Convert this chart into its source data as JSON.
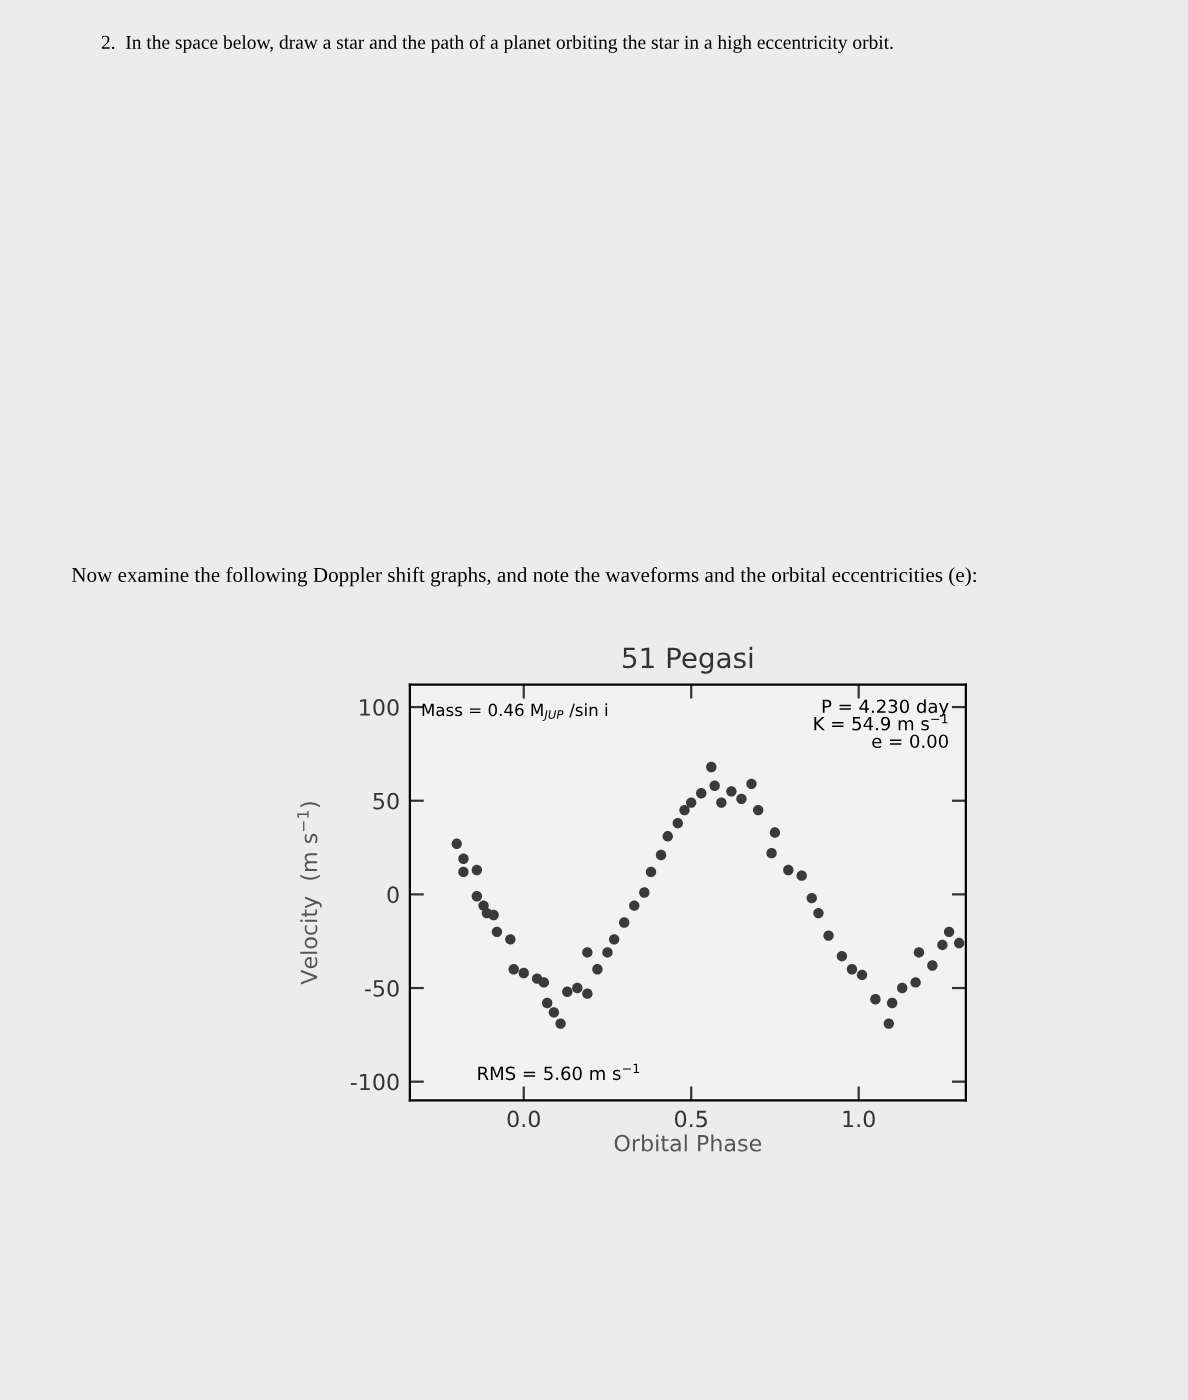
{
  "chart_data": {
    "type": "scatter",
    "title": "51 Pegasi",
    "xlabel": "Orbital Phase",
    "ylabel": "Velocity  (m s$^{−1}$)",
    "annotations": [
      "2.  In the space below, draw a star and the path of a planet orbiting the star in a high eccentricity orbit.",
      "Now examine the following Doppler shift graphs, and note the waveforms and the orbital eccentricities (e):",
      "Mass = 0.46 M$_{JUP}$ /sin i",
      "P = 4.230 day\nK = 54.9 m s$^{−1}$\ne = 0.00",
      "RMS = 5.60 m s$^{−1}$"
    ],
    "xlim": [
      -0.34,
      1.32
    ],
    "xticks": [
      {
        "value": 0,
        "label": "0.0"
      },
      0.5,
      {
        "value": 1,
        "label": "1.0"
      }
    ],
    "ylim": [
      -110,
      112
    ],
    "yticks": [
      -100,
      -50,
      0,
      50,
      100
    ],
    "grid": false,
    "marker": "circle",
    "series": [
      {
        "color": "#3a3a3a",
        "x": [
          -0.2,
          -0.18,
          -0.18,
          -0.14,
          -0.14,
          -0.12,
          -0.11,
          -0.09,
          -0.08,
          -0.04,
          -0.03,
          0.0,
          0.04,
          0.06,
          0.07,
          0.09,
          0.11,
          0.13,
          0.16,
          0.19,
          0.19,
          0.22,
          0.25,
          0.27,
          0.3,
          0.33,
          0.36,
          0.38,
          0.41,
          0.43,
          0.46,
          0.48,
          0.5,
          0.53,
          0.56,
          0.57,
          0.59,
          0.62,
          0.65,
          0.68,
          0.7,
          0.74,
          0.75,
          0.79,
          0.83,
          0.86,
          0.88,
          0.91,
          0.95,
          0.98,
          1.01,
          1.05,
          1.09,
          1.1,
          1.13,
          1.17,
          1.18,
          1.22,
          1.25,
          1.27,
          1.3
        ],
        "values": [
          27,
          19,
          12,
          13,
          -1,
          -6,
          -10,
          -11,
          -20,
          -24,
          -40,
          -42,
          -45,
          -47,
          -58,
          -63,
          -69,
          -52,
          -50,
          -53,
          -31,
          -40,
          -31,
          -24,
          -15,
          -6,
          1,
          12,
          21,
          31,
          38,
          45,
          49,
          54,
          68,
          58,
          49,
          55,
          51,
          59,
          45,
          22,
          33,
          13,
          10,
          -2,
          -10,
          -22,
          -33,
          -40,
          -43,
          -56,
          -69,
          -58,
          -50,
          -47,
          -31,
          -38,
          -27,
          -20,
          -26
        ]
      }
    ]
  }
}
